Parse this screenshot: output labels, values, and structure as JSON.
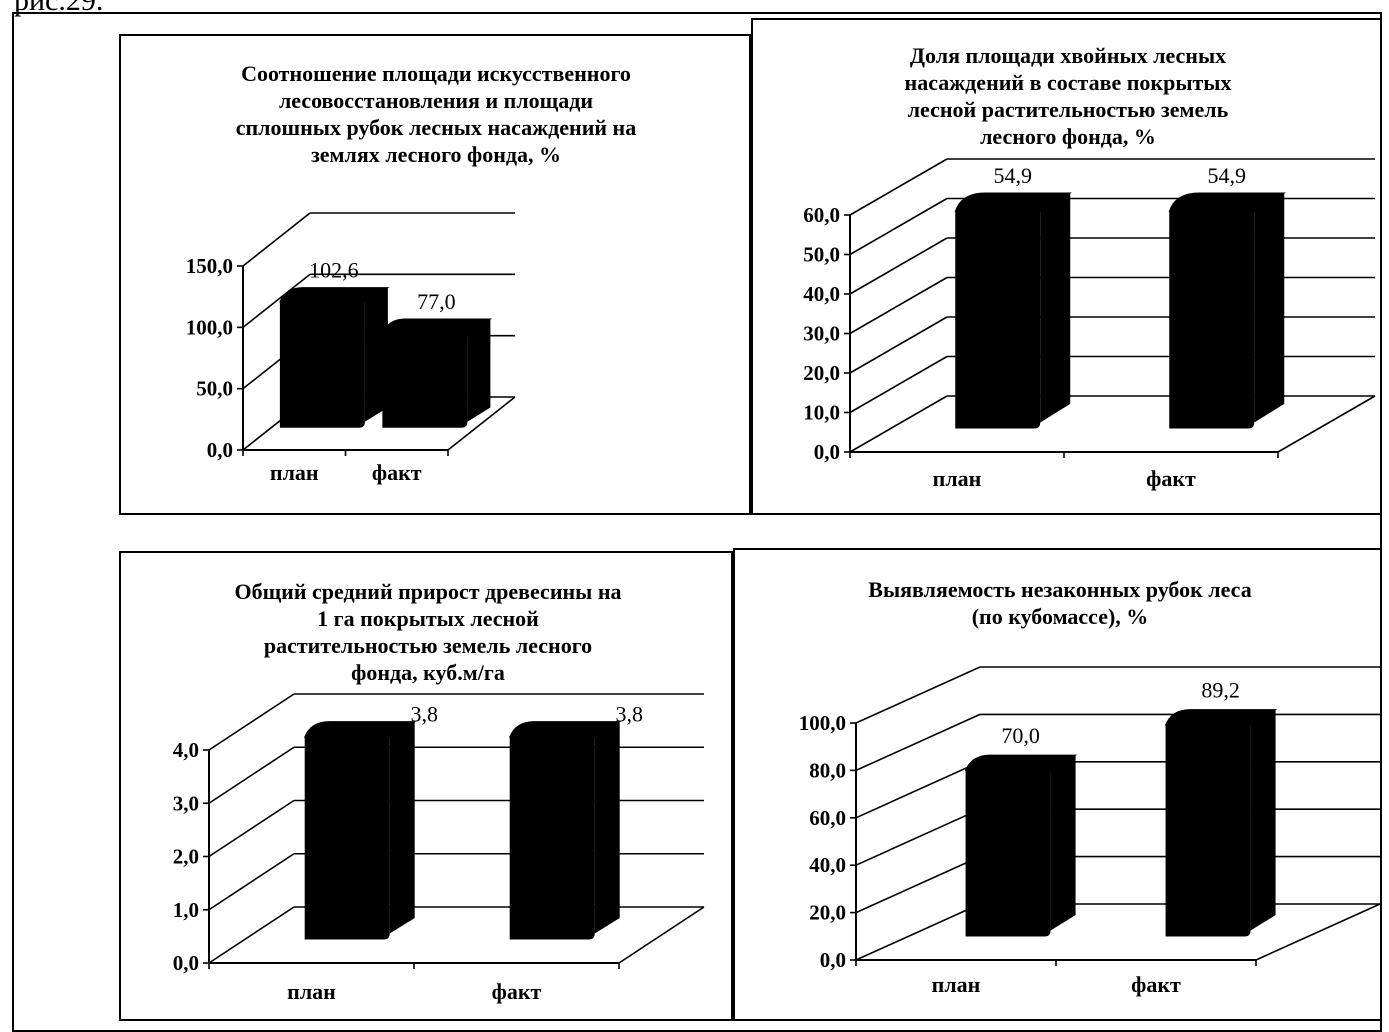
{
  "caption": "рис.29.",
  "chart_data": [
    {
      "type": "bar",
      "title": "Соотношение площади искусственного лесовосстановления и площади сплошных рубок лесных насаждений на землях лесного фонда, %",
      "title_lines": [
        "Соотношение площади искусственного",
        "лесовосстановления и площади",
        "сплошных рубок лесных насаждений на",
        "землях лесного фонда, %"
      ],
      "categories": [
        "план",
        "факт"
      ],
      "values": [
        102.6,
        77.0
      ],
      "value_labels": [
        "102,6",
        "77,0"
      ],
      "ylim": [
        0,
        150
      ],
      "yticks": [
        "0,0",
        "50,0",
        "100,0",
        "150,0"
      ],
      "xlabel": "",
      "ylabel": "",
      "grid": true
    },
    {
      "type": "bar",
      "title": "Доля площади хвойных лесных насаждений в составе покрытых лесной растительностью земель лесного фонда, %",
      "title_lines": [
        "Доля площади хвойных лесных",
        "насаждений в составе покрытых",
        "лесной растительностью земель",
        "лесного фонда, %"
      ],
      "categories": [
        "план",
        "факт"
      ],
      "values": [
        54.9,
        54.9
      ],
      "value_labels": [
        "54,9",
        "54,9"
      ],
      "ylim": [
        0,
        60
      ],
      "yticks": [
        "0,0",
        "10,0",
        "20,0",
        "30,0",
        "40,0",
        "50,0",
        "60,0"
      ],
      "xlabel": "",
      "ylabel": "",
      "grid": true
    },
    {
      "type": "bar",
      "title": "Общий средний прирост древесины на 1 га покрытых лесной растительностью земель лесного фонда, куб.м/га",
      "title_lines": [
        "Общий средний прирост древесины на",
        "1 га покрытых лесной",
        "растительностью земель лесного",
        "фонда, куб.м/га"
      ],
      "categories": [
        "план",
        "факт"
      ],
      "values": [
        3.8,
        3.8
      ],
      "value_labels": [
        "3,8",
        "3,8"
      ],
      "ylim": [
        0,
        4
      ],
      "yticks": [
        "0,0",
        "1,0",
        "2,0",
        "3,0",
        "4,0"
      ],
      "xlabel": "",
      "ylabel": "",
      "grid": true
    },
    {
      "type": "bar",
      "title": "Выявляемость незаконных рубок леса (по кубомассе), %",
      "title_lines": [
        "Выявляемость незаконных рубок леса",
        "(по кубомассе), %"
      ],
      "categories": [
        "план",
        "факт"
      ],
      "values": [
        70.0,
        89.2
      ],
      "value_labels": [
        "70,0",
        "89,2"
      ],
      "ylim": [
        0,
        100
      ],
      "yticks": [
        "0,0",
        "20,0",
        "40,0",
        "60,0",
        "80,0",
        "100,0"
      ],
      "xlabel": "",
      "ylabel": "",
      "grid": true
    }
  ]
}
